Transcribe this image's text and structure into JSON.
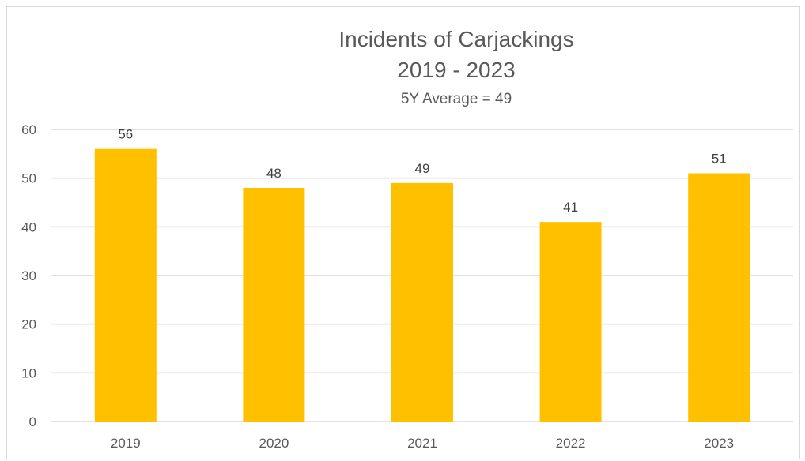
{
  "chart_data": {
    "type": "bar",
    "title": "Incidents of Carjackings",
    "title_line2": "2019 - 2023",
    "subtitle": "5Y Average = 49",
    "categories": [
      "2019",
      "2020",
      "2021",
      "2022",
      "2023"
    ],
    "values": [
      56,
      48,
      49,
      41,
      51
    ],
    "ylim": [
      0,
      60
    ],
    "yticks": [
      0,
      10,
      20,
      30,
      40,
      50,
      60
    ],
    "ytick_labels": [
      "0",
      "10",
      "20",
      "30",
      "40",
      "50",
      "60"
    ],
    "data_labels": [
      "56",
      "48",
      "49",
      "41",
      "51"
    ],
    "xlabel": "",
    "ylabel": "",
    "grid": true,
    "legend": "none",
    "colors": {
      "bar": "#FFC000",
      "grid": "#d9d9d9",
      "text": "#595959"
    }
  }
}
